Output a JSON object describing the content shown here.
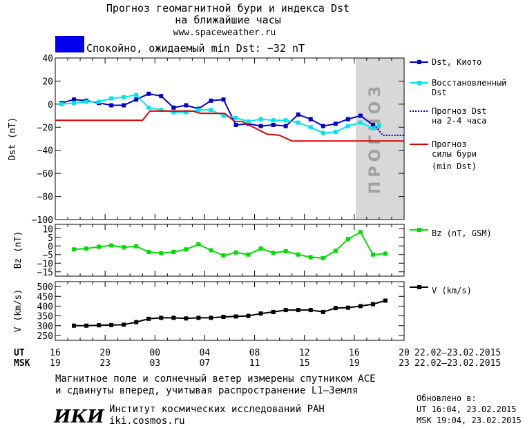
{
  "title_lines": [
    "Прогноз геомагнитной бури и индекса Dst",
    "на ближайшие часы"
  ],
  "site_url": "www.spaceweather.ru",
  "status": {
    "text": "Спокойно, ожидаемый min Dst: −32 nT",
    "color": "#0000ee"
  },
  "forecast_watermark": "ПРОГНОЗ",
  "legend": {
    "dst_kyoto": "Dst, Киото",
    "dst_restored_1": "Восстановленный",
    "dst_restored_2": "Dst",
    "forecast_1": "Прогноз Dst",
    "forecast_2": "на 2-4 часа",
    "storm_1": "Прогноз",
    "storm_2": "силы бури",
    "storm_3": "(min Dst)",
    "bz": "Bz (nT, GSM)",
    "v": "V (km/s)"
  },
  "axis_labels": {
    "dst": "Dst (nT)",
    "bz": "Bz (nT)",
    "v": "V (km/s)"
  },
  "time_axis": {
    "ut_label": "UT",
    "msk_label": "MSK",
    "ut_ticks": [
      "16",
      "20",
      "00",
      "04",
      "08",
      "12",
      "16",
      "20"
    ],
    "msk_ticks": [
      "19",
      "23",
      "03",
      "07",
      "11",
      "15",
      "19",
      "23"
    ],
    "ut_range": "22.02–23.02.2015",
    "msk_range": "22.02–23.02.2015"
  },
  "footer": {
    "note_1": "Магнитное поле и солнечный ветер измерены спутником ACE",
    "note_2": "и сдвинуты вперед, учитывая распространение L1–Земля",
    "logo_text": "ИКИ",
    "institute": "Институт космических исследований РАН",
    "institute_url": "iki.cosmos.ru",
    "updated_label": "Обновлено в:",
    "updated_ut": "UT   16:04, 23.02.2015",
    "updated_msk": "MSK 19:04, 23.02.2015"
  },
  "chart_data": [
    {
      "type": "line",
      "panel": "dst",
      "ylabel": "Dst (nT)",
      "ylim": [
        -100,
        40
      ],
      "yticks": [
        40,
        20,
        0,
        -20,
        -40,
        -60,
        -80,
        -100
      ],
      "xlim_hours": [
        16,
        44
      ],
      "forecast_region_hours": [
        42,
        44
      ],
      "series": [
        {
          "name": "Dst, Киото",
          "color": "#0000cc",
          "x": [
            16.5,
            17.5,
            18.5,
            19.5,
            20.5,
            21.5,
            22.5,
            23.5,
            24.5,
            25.5,
            26.5,
            27.5,
            28.5,
            29.5,
            30.5,
            31.5,
            32.5,
            33.5,
            34.5,
            35.5,
            36.5,
            37.5,
            38.5,
            39.5,
            40.5,
            41.5
          ],
          "y": [
            1,
            4,
            3,
            1,
            -1,
            -1,
            4,
            9,
            7,
            -3,
            -1,
            -4,
            3,
            4,
            -18,
            -17,
            -19,
            -18,
            -19,
            -9,
            -13,
            -19,
            -17,
            -13,
            -10,
            -18
          ]
        },
        {
          "name": "Восстановленный Dst",
          "color": "#00e5ee",
          "x": [
            16.5,
            17.5,
            18.5,
            19.5,
            20.5,
            21.5,
            22.5,
            23.5,
            24.5,
            25.5,
            26.5,
            27.5,
            28.5,
            29.5,
            30.5,
            31.5,
            32.5,
            33.5,
            34.5,
            35.5,
            36.5,
            37.5,
            38.5,
            39.5,
            40.5,
            41.5,
            42.0
          ],
          "y": [
            0,
            1,
            2,
            2,
            5,
            6,
            8,
            -3,
            -5,
            -7,
            -7,
            -5,
            -5,
            -10,
            -12,
            -15,
            -13,
            -14,
            -14,
            -16,
            -20,
            -25,
            -24,
            -19,
            -16,
            -21,
            -18
          ]
        },
        {
          "name": "Прогноз Dst на 2-4 часа",
          "color": "#0000cc",
          "style": "dotted",
          "x": [
            41.6,
            42.3,
            44.0
          ],
          "y": [
            -18,
            -27,
            -27
          ]
        },
        {
          "name": "Прогноз силы бури (min Dst)",
          "color": "#e00000",
          "x": [
            16.0,
            23.0,
            23.6,
            27.0,
            27.7,
            29.6,
            30.4,
            31.0,
            33.0,
            34.0,
            35.0,
            47.0
          ],
          "y": [
            -14,
            -14,
            -6,
            -6,
            -8,
            -8,
            -15,
            -15,
            -26,
            -27,
            -32,
            -32
          ]
        }
      ]
    },
    {
      "type": "line",
      "panel": "bz",
      "ylabel": "Bz (nT)",
      "ylim": [
        -17.5,
        12.5
      ],
      "yticks": [
        10,
        5,
        0,
        -5,
        -10,
        -15
      ],
      "series": [
        {
          "name": "Bz (nT, GSM)",
          "color": "#00dd00",
          "x": [
            17.5,
            18.5,
            19.5,
            20.5,
            21.5,
            22.5,
            23.5,
            24.5,
            25.5,
            26.5,
            27.5,
            28.5,
            29.5,
            30.5,
            31.5,
            32.5,
            33.5,
            34.5,
            35.5,
            36.5,
            37.5,
            38.5,
            39.5,
            40.5,
            41.5,
            42.5
          ],
          "y": [
            -2,
            -1.5,
            -0.5,
            0.3,
            -0.8,
            -0.2,
            -3.5,
            -4.2,
            -3.5,
            -2,
            1,
            -2.5,
            -5.5,
            -3.8,
            -5,
            -1.5,
            -4,
            -3,
            -5,
            -6.5,
            -7,
            -2.8,
            4,
            8,
            -5,
            -4.5
          ]
        }
      ]
    },
    {
      "type": "line",
      "panel": "v",
      "ylabel": "V (km/s)",
      "ylim": [
        225,
        525
      ],
      "yticks": [
        500,
        450,
        400,
        350,
        300,
        250
      ],
      "series": [
        {
          "name": "V (km/s)",
          "color": "#000000",
          "x": [
            17.5,
            18.5,
            19.5,
            20.5,
            21.5,
            22.5,
            23.5,
            24.5,
            25.5,
            26.5,
            27.5,
            28.5,
            29.5,
            30.5,
            31.5,
            32.5,
            33.5,
            34.5,
            35.5,
            36.5,
            37.5,
            38.5,
            39.5,
            40.5,
            41.5,
            42.5
          ],
          "y": [
            300,
            300,
            302,
            303,
            305,
            318,
            335,
            340,
            340,
            337,
            340,
            340,
            345,
            347,
            350,
            362,
            370,
            380,
            380,
            380,
            370,
            390,
            392,
            400,
            410,
            428
          ]
        }
      ]
    }
  ]
}
